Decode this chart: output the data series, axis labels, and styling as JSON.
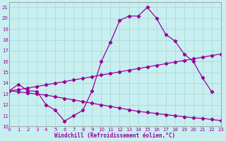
{
  "xlabel": "Windchill (Refroidissement éolien,°C)",
  "xlim": [
    0,
    23
  ],
  "ylim": [
    10,
    21.5
  ],
  "xticks": [
    0,
    1,
    2,
    3,
    4,
    5,
    6,
    7,
    8,
    9,
    10,
    11,
    12,
    13,
    14,
    15,
    16,
    17,
    18,
    19,
    20,
    21,
    22,
    23
  ],
  "yticks": [
    10,
    11,
    12,
    13,
    14,
    15,
    16,
    17,
    18,
    19,
    20,
    21
  ],
  "bg_color": "#c8eef0",
  "line_color": "#990099",
  "grid_color": "#a0d8d8",
  "curve_main_x": [
    0,
    1,
    2,
    3,
    4,
    5,
    6,
    7,
    8,
    9,
    10,
    11,
    12,
    13,
    14,
    15,
    16,
    17,
    18,
    19,
    20,
    21,
    22
  ],
  "curve_main_y": [
    13.3,
    13.9,
    13.3,
    13.25,
    12.0,
    11.5,
    10.5,
    11.0,
    11.5,
    13.3,
    16.0,
    17.8,
    19.8,
    20.2,
    20.2,
    21.0,
    20.0,
    18.5,
    17.9,
    16.7,
    16.0,
    14.5,
    13.2
  ],
  "curve_upper_x": [
    0,
    1,
    2,
    3,
    4,
    5,
    6,
    7,
    8,
    9,
    10,
    11,
    12,
    13,
    14,
    15,
    16,
    17,
    18,
    19,
    20,
    21,
    22,
    23
  ],
  "curve_upper_y": [
    13.3,
    13.4,
    13.55,
    13.7,
    13.85,
    14.0,
    14.15,
    14.3,
    14.45,
    14.6,
    14.75,
    14.9,
    15.05,
    15.2,
    15.35,
    15.5,
    15.65,
    15.8,
    15.95,
    16.1,
    16.25,
    16.4,
    16.55,
    16.7
  ],
  "curve_lower_x": [
    0,
    1,
    2,
    3,
    4,
    5,
    6,
    7,
    8,
    9,
    10,
    11,
    12,
    13,
    14,
    15,
    16,
    17,
    18,
    19,
    20,
    21,
    22,
    23
  ],
  "curve_lower_y": [
    13.3,
    13.2,
    13.1,
    13.0,
    12.9,
    12.75,
    12.6,
    12.45,
    12.3,
    12.15,
    12.0,
    11.85,
    11.7,
    11.55,
    11.4,
    11.3,
    11.2,
    11.1,
    11.0,
    10.9,
    10.8,
    10.75,
    10.65,
    10.55
  ],
  "lw": 0.9,
  "ms": 2.2,
  "tick_fontsize": 5.0,
  "xlabel_fontsize": 5.5
}
